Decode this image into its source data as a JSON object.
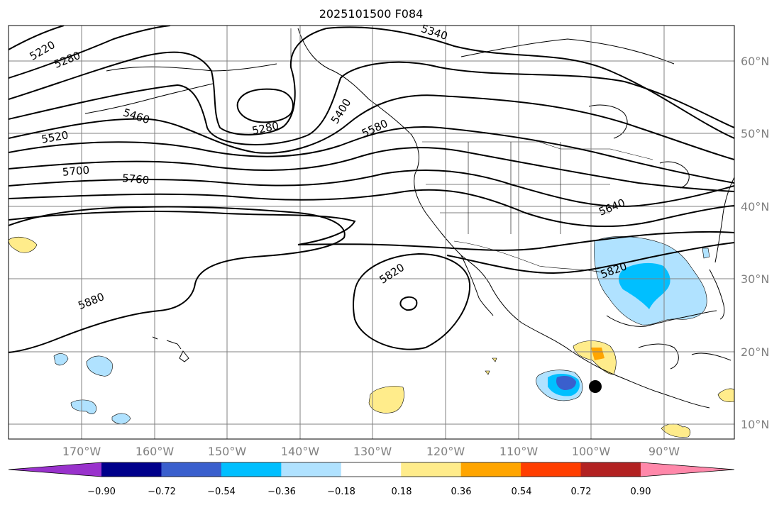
{
  "title": "2025101500 F084",
  "graticule": {
    "lat_labels": [
      "60°N",
      "50°N",
      "40°N",
      "30°N",
      "20°N",
      "10°N"
    ],
    "lon_labels": [
      "170°W",
      "160°W",
      "150°W",
      "140°W",
      "130°W",
      "120°W",
      "110°W",
      "100°W",
      "90°W"
    ]
  },
  "contours": {
    "labels": [
      "5220",
      "5280",
      "5340",
      "5280",
      "5400",
      "5460",
      "5520",
      "5580",
      "5700",
      "5760",
      "5640",
      "5820",
      "5820",
      "5880"
    ]
  },
  "colorbar": {
    "tick_labels": [
      "−0.90",
      "−0.72",
      "−0.54",
      "−0.36",
      "−0.18",
      "0.18",
      "0.36",
      "0.54",
      "0.72",
      "0.90"
    ],
    "colors": [
      "#9932CC",
      "#00008B",
      "#3A5FCD",
      "#00BFFF",
      "#B0E2FF",
      "#FFFFFF",
      "#FFEC8B",
      "#FFA500",
      "#FF3E00",
      "#B22222",
      "#FF88AA"
    ]
  },
  "shading_colors": {
    "light_blue": "#B0E2FF",
    "cyan": "#00BFFF",
    "royal_blue": "#3A5FCD",
    "light_yellow": "#FFEC8B",
    "orange": "#FFA500"
  }
}
